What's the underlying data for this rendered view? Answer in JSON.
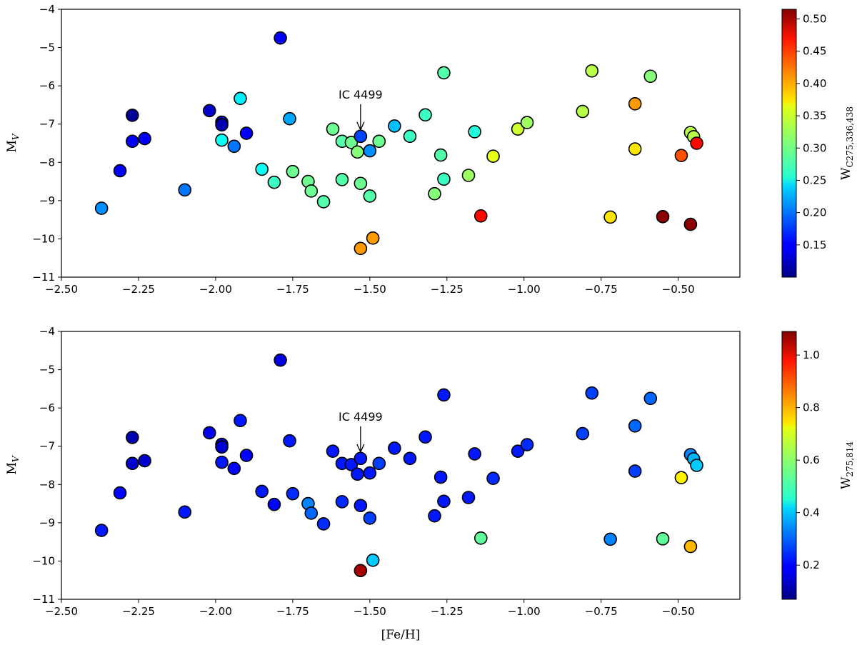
{
  "chart_data": [
    {
      "type": "scatter",
      "xlabel": "",
      "ylabel": "M_V",
      "xlim": [
        -2.5,
        -0.3
      ],
      "ylim": [
        -11,
        -4
      ],
      "y_inverted": true,
      "x_ticks": [
        "−2.50",
        "−2.25",
        "−2.00",
        "−1.75",
        "−1.50",
        "−1.25",
        "−1.00",
        "−0.75",
        "−0.50"
      ],
      "y_ticks": [
        "−4",
        "−5",
        "−6",
        "−7",
        "−8",
        "−9",
        "−10",
        "−11"
      ],
      "colorbar": {
        "label": "W_C275,336,438",
        "min": 0.1,
        "max": 0.515,
        "colormap": "jet",
        "ticks": [
          "0.15",
          "0.20",
          "0.25",
          "0.30",
          "0.35",
          "0.40",
          "0.45",
          "0.50"
        ]
      },
      "annotation": {
        "text": "IC 4499",
        "x": -1.53,
        "y": -7.32
      },
      "points": [
        [
          -2.37,
          -9.2,
          0.21
        ],
        [
          -2.31,
          -8.22,
          0.15
        ],
        [
          -2.27,
          -6.77,
          0.11
        ],
        [
          -2.27,
          -7.45,
          0.15
        ],
        [
          -2.23,
          -7.38,
          0.15
        ],
        [
          -2.1,
          -8.72,
          0.2
        ],
        [
          -2.02,
          -6.65,
          0.13
        ],
        [
          -1.98,
          -6.95,
          0.12
        ],
        [
          -1.98,
          -7.02,
          0.12
        ],
        [
          -1.98,
          -7.42,
          0.26
        ],
        [
          -1.94,
          -7.58,
          0.2
        ],
        [
          -1.92,
          -6.33,
          0.25
        ],
        [
          -1.9,
          -7.24,
          0.15
        ],
        [
          -1.79,
          -4.75,
          0.15
        ],
        [
          -1.85,
          -8.18,
          0.26
        ],
        [
          -1.81,
          -8.52,
          0.28
        ],
        [
          -1.76,
          -6.86,
          0.22
        ],
        [
          -1.75,
          -8.24,
          0.3
        ],
        [
          -1.7,
          -8.5,
          0.3
        ],
        [
          -1.69,
          -8.75,
          0.3
        ],
        [
          -1.65,
          -9.03,
          0.29
        ],
        [
          -1.62,
          -7.13,
          0.3
        ],
        [
          -1.59,
          -7.45,
          0.29
        ],
        [
          -1.59,
          -8.45,
          0.29
        ],
        [
          -1.56,
          -7.48,
          0.3
        ],
        [
          -1.54,
          -7.73,
          0.31
        ],
        [
          -1.53,
          -7.32,
          0.18
        ],
        [
          -1.53,
          -8.55,
          0.3
        ],
        [
          -1.5,
          -7.7,
          0.21
        ],
        [
          -1.5,
          -8.88,
          0.29
        ],
        [
          -1.47,
          -7.45,
          0.3
        ],
        [
          -1.53,
          -10.25,
          0.4
        ],
        [
          -1.49,
          -9.98,
          0.4
        ],
        [
          -1.42,
          -7.05,
          0.23
        ],
        [
          -1.37,
          -7.32,
          0.28
        ],
        [
          -1.32,
          -6.76,
          0.28
        ],
        [
          -1.29,
          -8.82,
          0.31
        ],
        [
          -1.27,
          -7.81,
          0.29
        ],
        [
          -1.26,
          -5.66,
          0.29
        ],
        [
          -1.26,
          -8.44,
          0.28
        ],
        [
          -1.18,
          -8.34,
          0.32
        ],
        [
          -1.16,
          -7.2,
          0.27
        ],
        [
          -1.14,
          -9.4,
          0.46
        ],
        [
          -1.1,
          -7.84,
          0.35
        ],
        [
          -1.02,
          -7.13,
          0.34
        ],
        [
          -0.99,
          -6.96,
          0.32
        ],
        [
          -0.81,
          -6.67,
          0.33
        ],
        [
          -0.78,
          -5.61,
          0.33
        ],
        [
          -0.72,
          -9.43,
          0.37
        ],
        [
          -0.64,
          -6.47,
          0.4
        ],
        [
          -0.64,
          -7.65,
          0.37
        ],
        [
          -0.59,
          -5.75,
          0.31
        ],
        [
          -0.55,
          -9.42,
          0.51
        ],
        [
          -0.49,
          -7.82,
          0.43
        ],
        [
          -0.46,
          -7.22,
          0.33
        ],
        [
          -0.45,
          -7.33,
          0.33
        ],
        [
          -0.44,
          -7.5,
          0.46
        ],
        [
          -0.46,
          -9.62,
          0.51
        ]
      ]
    },
    {
      "type": "scatter",
      "xlabel": "[Fe/H]",
      "ylabel": "M_V",
      "xlim": [
        -2.5,
        -0.3
      ],
      "ylim": [
        -11,
        -4
      ],
      "y_inverted": true,
      "x_ticks": [
        "−2.50",
        "−2.25",
        "−2.00",
        "−1.75",
        "−1.50",
        "−1.25",
        "−1.00",
        "−0.75",
        "−0.50"
      ],
      "y_ticks": [
        "−4",
        "−5",
        "−6",
        "−7",
        "−8",
        "−9",
        "−10",
        "−11"
      ],
      "colorbar": {
        "label": "W_275,814",
        "min": 0.07,
        "max": 1.09,
        "colormap": "jet",
        "ticks": [
          "0.2",
          "0.4",
          "0.6",
          "0.8",
          "1.0"
        ]
      },
      "annotation": {
        "text": "IC 4499",
        "x": -1.53,
        "y": -7.32
      },
      "points": [
        [
          -2.37,
          -9.2,
          0.22
        ],
        [
          -2.31,
          -8.22,
          0.2
        ],
        [
          -2.27,
          -6.77,
          0.12
        ],
        [
          -2.27,
          -7.45,
          0.15
        ],
        [
          -2.23,
          -7.38,
          0.15
        ],
        [
          -2.1,
          -8.72,
          0.22
        ],
        [
          -2.02,
          -6.65,
          0.18
        ],
        [
          -1.98,
          -6.95,
          0.15
        ],
        [
          -1.98,
          -7.02,
          0.15
        ],
        [
          -1.98,
          -7.42,
          0.22
        ],
        [
          -1.94,
          -7.58,
          0.2
        ],
        [
          -1.92,
          -6.33,
          0.22
        ],
        [
          -1.9,
          -7.24,
          0.2
        ],
        [
          -1.79,
          -4.75,
          0.17
        ],
        [
          -1.85,
          -8.18,
          0.22
        ],
        [
          -1.81,
          -8.52,
          0.2
        ],
        [
          -1.76,
          -6.86,
          0.22
        ],
        [
          -1.75,
          -8.24,
          0.24
        ],
        [
          -1.7,
          -8.5,
          0.33
        ],
        [
          -1.69,
          -8.75,
          0.3
        ],
        [
          -1.65,
          -9.03,
          0.24
        ],
        [
          -1.62,
          -7.13,
          0.22
        ],
        [
          -1.59,
          -7.45,
          0.22
        ],
        [
          -1.59,
          -8.45,
          0.24
        ],
        [
          -1.56,
          -7.48,
          0.22
        ],
        [
          -1.54,
          -7.73,
          0.22
        ],
        [
          -1.53,
          -7.32,
          0.22
        ],
        [
          -1.53,
          -8.55,
          0.22
        ],
        [
          -1.5,
          -7.7,
          0.22
        ],
        [
          -1.5,
          -8.88,
          0.26
        ],
        [
          -1.47,
          -7.45,
          0.26
        ],
        [
          -1.53,
          -10.25,
          1.05
        ],
        [
          -1.49,
          -9.98,
          0.4
        ],
        [
          -1.42,
          -7.05,
          0.22
        ],
        [
          -1.37,
          -7.32,
          0.22
        ],
        [
          -1.32,
          -6.76,
          0.22
        ],
        [
          -1.29,
          -8.82,
          0.22
        ],
        [
          -1.27,
          -7.81,
          0.22
        ],
        [
          -1.26,
          -5.66,
          0.22
        ],
        [
          -1.26,
          -8.44,
          0.22
        ],
        [
          -1.18,
          -8.34,
          0.22
        ],
        [
          -1.16,
          -7.2,
          0.22
        ],
        [
          -1.14,
          -9.4,
          0.55
        ],
        [
          -1.1,
          -7.84,
          0.24
        ],
        [
          -1.02,
          -7.13,
          0.22
        ],
        [
          -0.99,
          -6.96,
          0.24
        ],
        [
          -0.81,
          -6.67,
          0.26
        ],
        [
          -0.78,
          -5.61,
          0.26
        ],
        [
          -0.72,
          -9.43,
          0.33
        ],
        [
          -0.64,
          -6.47,
          0.3
        ],
        [
          -0.64,
          -7.65,
          0.26
        ],
        [
          -0.59,
          -5.75,
          0.3
        ],
        [
          -0.55,
          -9.42,
          0.55
        ],
        [
          -0.49,
          -7.82,
          0.72
        ],
        [
          -0.46,
          -7.22,
          0.33
        ],
        [
          -0.45,
          -7.33,
          0.38
        ],
        [
          -0.44,
          -7.5,
          0.4
        ],
        [
          -0.46,
          -9.62,
          0.78
        ]
      ]
    }
  ]
}
